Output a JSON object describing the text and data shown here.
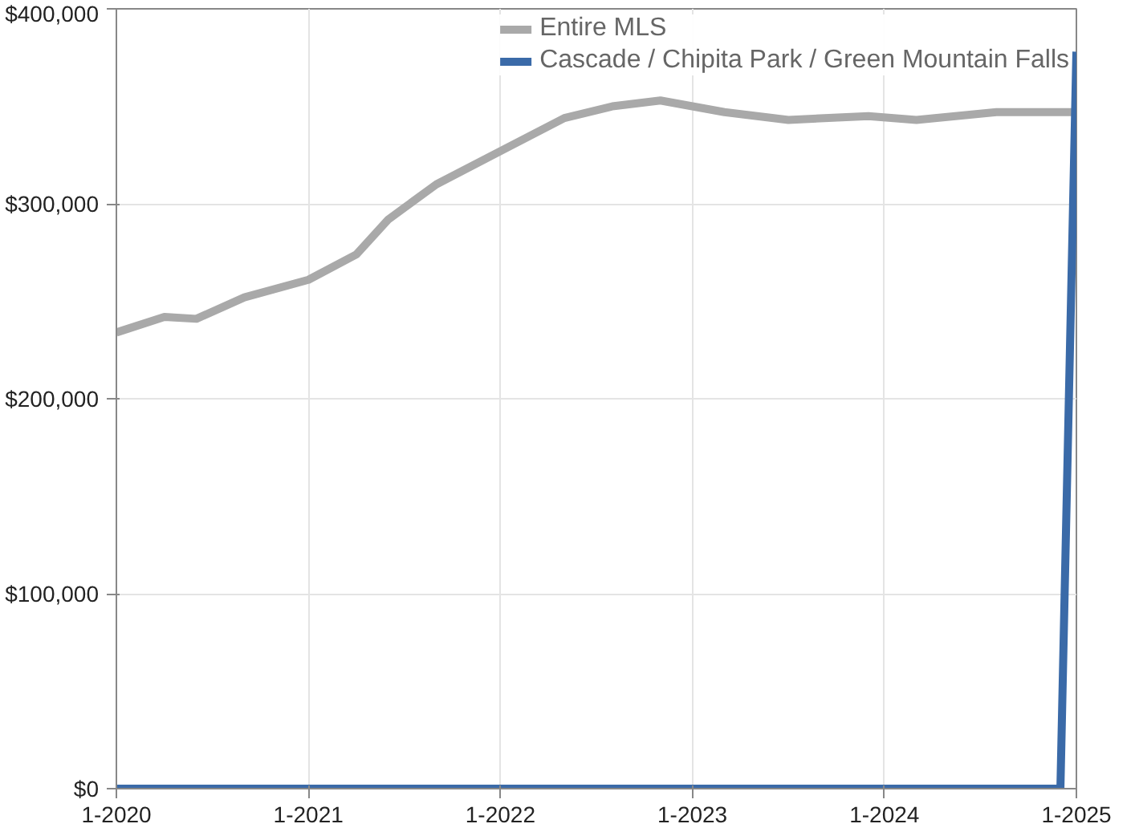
{
  "chart_data": {
    "type": "line",
    "x": [
      "2020-01",
      "2020-04",
      "2020-06",
      "2020-09",
      "2021-01",
      "2021-04",
      "2021-06",
      "2021-09",
      "2022-01",
      "2022-05",
      "2022-08",
      "2022-11",
      "2023-03",
      "2023-07",
      "2023-12",
      "2024-03",
      "2024-08",
      "2025-01"
    ],
    "series": [
      {
        "name": "Entire MLS",
        "color": "#a9a9a9",
        "values": [
          234000,
          242000,
          241000,
          252000,
          261000,
          274000,
          292000,
          310000,
          327000,
          344000,
          350000,
          353000,
          347000,
          343000,
          345000,
          343000,
          347000,
          347000
        ]
      },
      {
        "name": "Cascade / Chipita Park / Green Mountain Falls",
        "color": "#3a6aa8",
        "x": [
          "2020-01",
          "2024-12",
          "2025-01"
        ],
        "values": [
          0,
          0,
          378000
        ]
      }
    ],
    "xlim": [
      "2020-01",
      "2025-01"
    ],
    "xticks": [
      {
        "value": "2020-01",
        "label": "1-2020"
      },
      {
        "value": "2021-01",
        "label": "1-2021"
      },
      {
        "value": "2022-01",
        "label": "1-2022"
      },
      {
        "value": "2023-01",
        "label": "1-2023"
      },
      {
        "value": "2024-01",
        "label": "1-2024"
      },
      {
        "value": "2025-01",
        "label": "1-2025"
      }
    ],
    "ylim": [
      0,
      400000
    ],
    "yticks": [
      {
        "value": 0,
        "label": "$0"
      },
      {
        "value": 100000,
        "label": "$100,000"
      },
      {
        "value": 200000,
        "label": "$200,000"
      },
      {
        "value": 300000,
        "label": "$300,000"
      },
      {
        "value": 400000,
        "label": "$400,000"
      }
    ],
    "grid": true,
    "legend": "top right",
    "line_style": "solid",
    "marker": "none"
  }
}
